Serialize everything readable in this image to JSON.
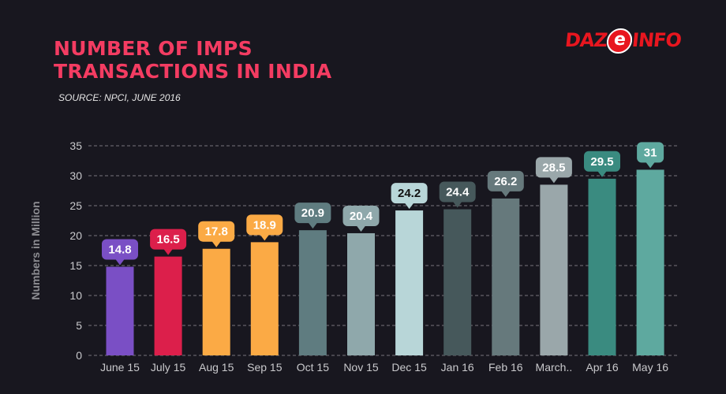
{
  "header": {
    "title_line1": "NUMBER OF IMPS",
    "title_line2": "TRANSACTIONS IN INDIA",
    "source": "SOURCE: NPCI, JUNE 2016"
  },
  "logo": {
    "before": "DAZ",
    "e": "e",
    "after": "INFO"
  },
  "chart_data": {
    "type": "bar",
    "title": "NUMBER OF IMPS TRANSACTIONS IN INDIA",
    "ylabel": "Numbers in Million",
    "xlabel": "",
    "ylim": [
      0,
      35
    ],
    "yticks": [
      0,
      5,
      10,
      15,
      20,
      25,
      30,
      35
    ],
    "grid": true,
    "categories": [
      "June 15",
      "July 15",
      "Aug 15",
      "Sep 15",
      "Oct 15",
      "Nov 15",
      "Dec 15",
      "Jan 16",
      "Feb 16",
      "March..",
      "Apr 16",
      "May 16"
    ],
    "values": [
      14.8,
      16.5,
      17.8,
      18.9,
      20.9,
      20.4,
      24.2,
      24.4,
      26.2,
      28.5,
      29.5,
      31
    ],
    "data_labels": [
      "14.8",
      "16.5",
      "17.8",
      "18.9",
      "20.9",
      "20.4",
      "24.2",
      "24.4",
      "26.2",
      "28.5",
      "29.5",
      "31"
    ],
    "colors": [
      "#7a4fc5",
      "#dc1f4b",
      "#fbaa45",
      "#fbaa45",
      "#5f7c80",
      "#8fa8ab",
      "#b8d6d8",
      "#46585b",
      "#66797c",
      "#9aa7aa",
      "#3a8b80",
      "#5ea99f"
    ],
    "label_text_colors": [
      "#ffffff",
      "#ffffff",
      "#ffffff",
      "#ffffff",
      "#ffffff",
      "#ffffff",
      "#111111",
      "#ffffff",
      "#ffffff",
      "#ffffff",
      "#ffffff",
      "#ffffff"
    ]
  }
}
